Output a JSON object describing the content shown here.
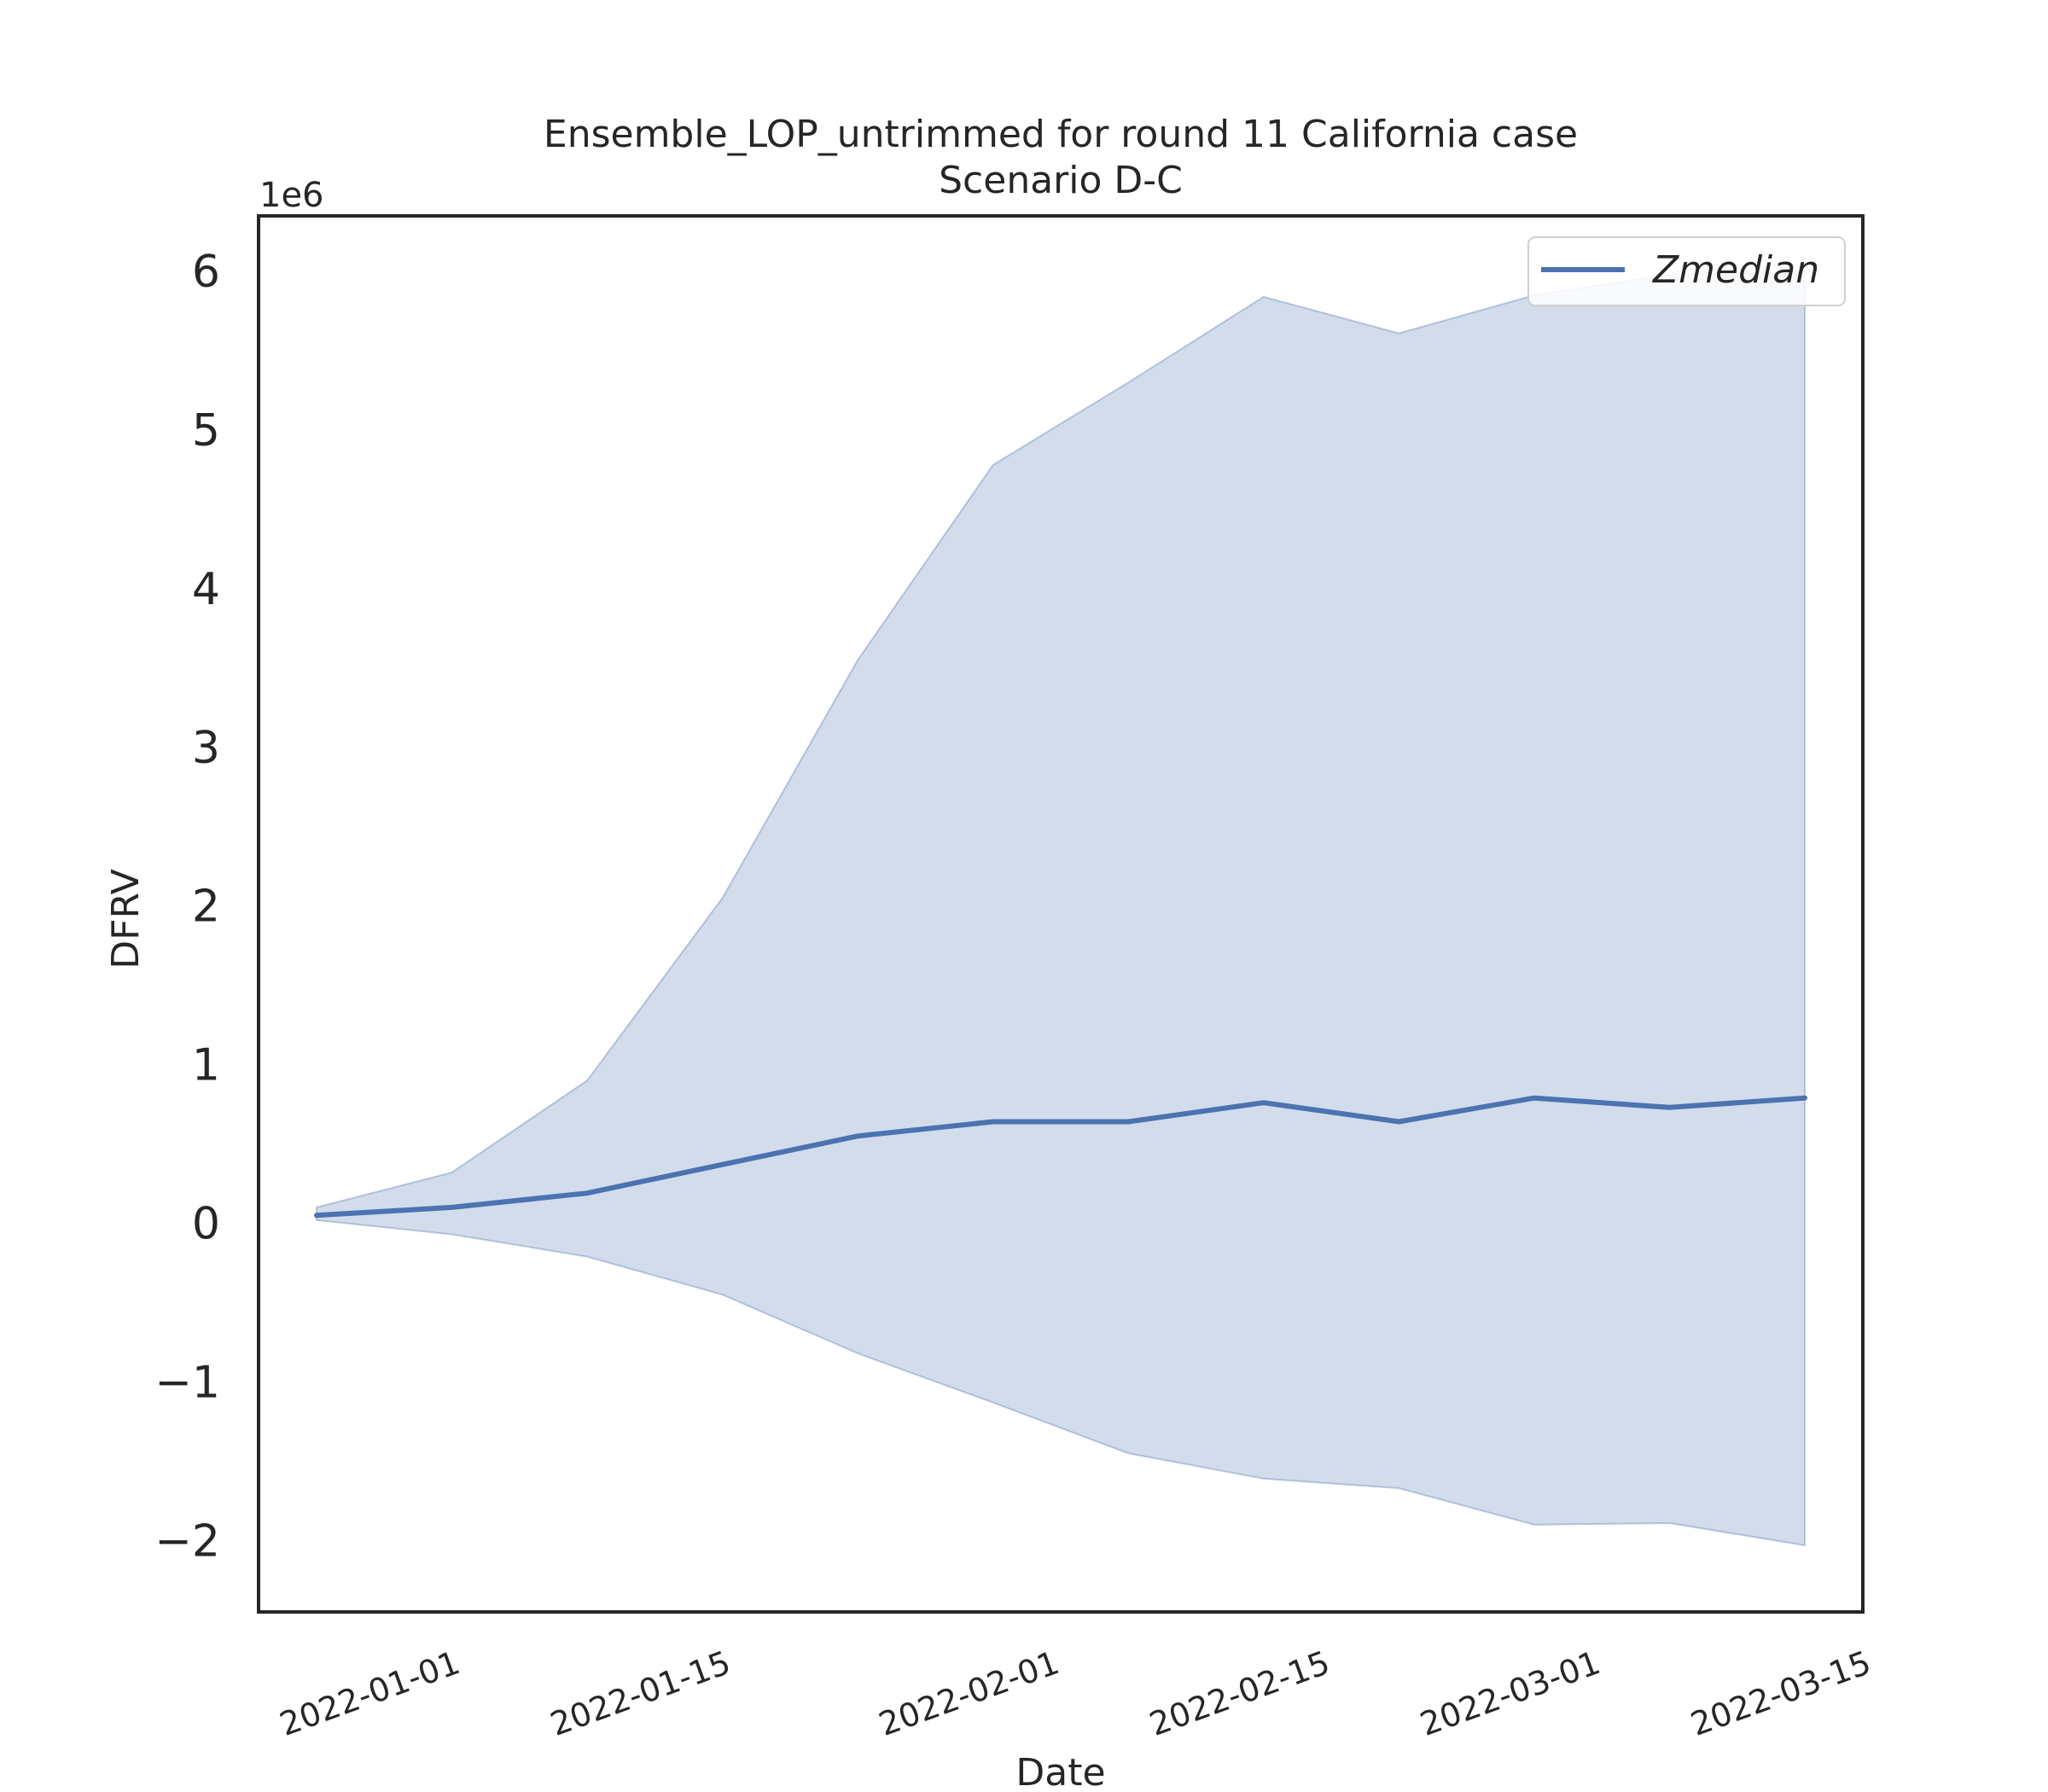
{
  "chart_data": {
    "type": "line",
    "title": "Ensemble_LOP_untrimmed for round 11 California case",
    "subtitle": "Scenario D-C",
    "xlabel": "Date",
    "ylabel": "DFRV",
    "y_offset_label": "1e6",
    "y_multiplier": 1000000,
    "xlim": [
      "2021-12-22",
      "2022-03-15"
    ],
    "ylim": [
      -2.45,
      6.35
    ],
    "x_ticks": [
      "2022-01-01",
      "2022-01-15",
      "2022-02-01",
      "2022-02-15",
      "2022-03-01",
      "2022-03-15"
    ],
    "y_ticks": [
      -2,
      -1,
      0,
      1,
      2,
      3,
      4,
      5,
      6
    ],
    "x_tick_rotation_deg": -20,
    "grid": false,
    "legend_position": "upper right",
    "x": [
      "2021-12-25",
      "2022-01-01",
      "2022-01-08",
      "2022-01-15",
      "2022-01-22",
      "2022-01-29",
      "2022-02-05",
      "2022-02-12",
      "2022-02-19",
      "2022-02-26",
      "2022-03-05",
      "2022-03-12"
    ],
    "series": [
      {
        "name": "Zmedian",
        "color": "#4c72b0",
        "values": [
          0.05,
          0.1,
          0.19,
          0.37,
          0.55,
          0.64,
          0.64,
          0.76,
          0.64,
          0.79,
          0.73,
          0.79
        ]
      }
    ],
    "band": {
      "color": "#4c72b0",
      "opacity": 0.25,
      "upper": [
        0.1,
        0.32,
        0.9,
        2.05,
        3.55,
        4.78,
        5.3,
        5.84,
        5.61,
        5.85,
        5.98,
        6.0
      ],
      "lower": [
        0.02,
        -0.07,
        -0.21,
        -0.45,
        -0.82,
        -1.13,
        -1.45,
        -1.61,
        -1.67,
        -1.9,
        -1.89,
        -2.03
      ]
    }
  }
}
